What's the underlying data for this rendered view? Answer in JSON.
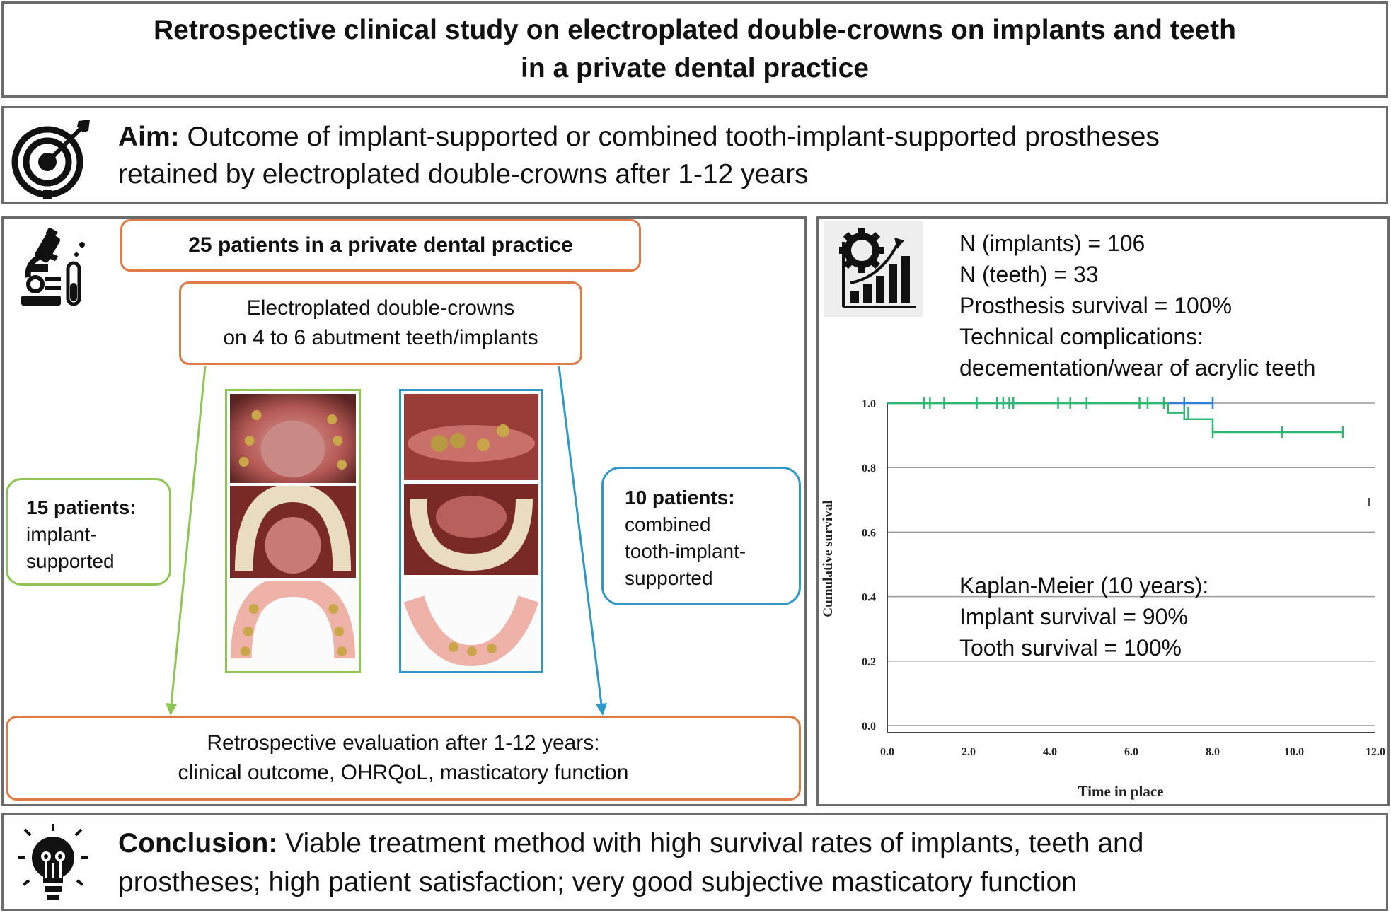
{
  "title": {
    "line1": "Retrospective clinical study on electroplated double-crowns on implants and teeth",
    "line2": "in a private dental practice"
  },
  "aim": {
    "label": "Aim:",
    "text_line1": "Outcome of implant-supported or combined tooth-implant-supported prostheses",
    "text_line2": "retained by electroplated double-crowns after 1-12 years",
    "icon": "target-arrow-icon"
  },
  "methods": {
    "icon": "microscope-icon",
    "patients": "25 patients in a private dental practice",
    "crowns_line1": "Electroplated double-crowns",
    "crowns_line2": "on 4 to 6 abutment teeth/implants",
    "group_implant": {
      "count": "15 patients:",
      "line1": "implant-",
      "line2": "supported",
      "color": "#8dc653"
    },
    "group_combined": {
      "count": "10 patients:",
      "line1": "combined",
      "line2": "tooth-implant-",
      "line3": "supported",
      "color": "#2f98c9"
    },
    "evaluation_line1": "Retrospective evaluation after 1-12 years:",
    "evaluation_line2": "clinical outcome, OHRQoL, masticatory function",
    "accent_color": "#e07b45"
  },
  "results": {
    "icon": "gear-chart-icon",
    "lines": [
      "N (implants) = 106",
      "N (teeth) = 33",
      "Prosthesis survival = 100%",
      "Technical complications:",
      "decementation/wear of acrylic teeth"
    ],
    "km_lines": [
      "Kaplan-Meier (10 years):",
      "Implant survival = 90%",
      "Tooth survival = 100%"
    ]
  },
  "chart_data": {
    "type": "line",
    "xlabel": "Time in place",
    "ylabel": "Cumulative survival",
    "xlim": [
      0,
      12
    ],
    "ylim": [
      0,
      1.0
    ],
    "x_ticks": [
      "0.0",
      "2.0",
      "4.0",
      "6.0",
      "8.0",
      "10.0",
      "12.0"
    ],
    "y_ticks": [
      "0.0",
      "0.2",
      "0.4",
      "0.6",
      "0.8",
      "1.0"
    ],
    "grid": true,
    "series": [
      {
        "color": "#2f7fd4",
        "steps": [
          [
            0,
            1.0
          ],
          [
            8.0,
            1.0
          ]
        ],
        "censored": [
          7.3,
          8.0
        ]
      },
      {
        "color": "#2eb872",
        "steps": [
          [
            0,
            1.0
          ],
          [
            6.9,
            1.0
          ],
          [
            6.9,
            0.97
          ],
          [
            7.3,
            0.97
          ],
          [
            7.3,
            0.95
          ],
          [
            8.0,
            0.95
          ],
          [
            8.0,
            0.91
          ],
          [
            11.2,
            0.91
          ]
        ],
        "censored": [
          0.9,
          1.05,
          1.4,
          2.2,
          2.7,
          2.85,
          3.0,
          3.1,
          4.2,
          4.5,
          4.9,
          6.2,
          6.4,
          6.8,
          7.3,
          7.4,
          8.0,
          9.7,
          11.2
        ],
        "censored_y": [
          1.0,
          1.0,
          1.0,
          1.0,
          1.0,
          1.0,
          1.0,
          1.0,
          1.0,
          1.0,
          1.0,
          1.0,
          1.0,
          1.0,
          0.97,
          0.97,
          0.91,
          0.91,
          0.91
        ]
      }
    ]
  },
  "conclusion": {
    "icon": "lightbulb-icon",
    "label": "Conclusion:",
    "text_line1": "Viable treatment method with high survival rates of implants, teeth and",
    "text_line2": "prostheses; high patient satisfaction; very good subjective masticatory function"
  }
}
